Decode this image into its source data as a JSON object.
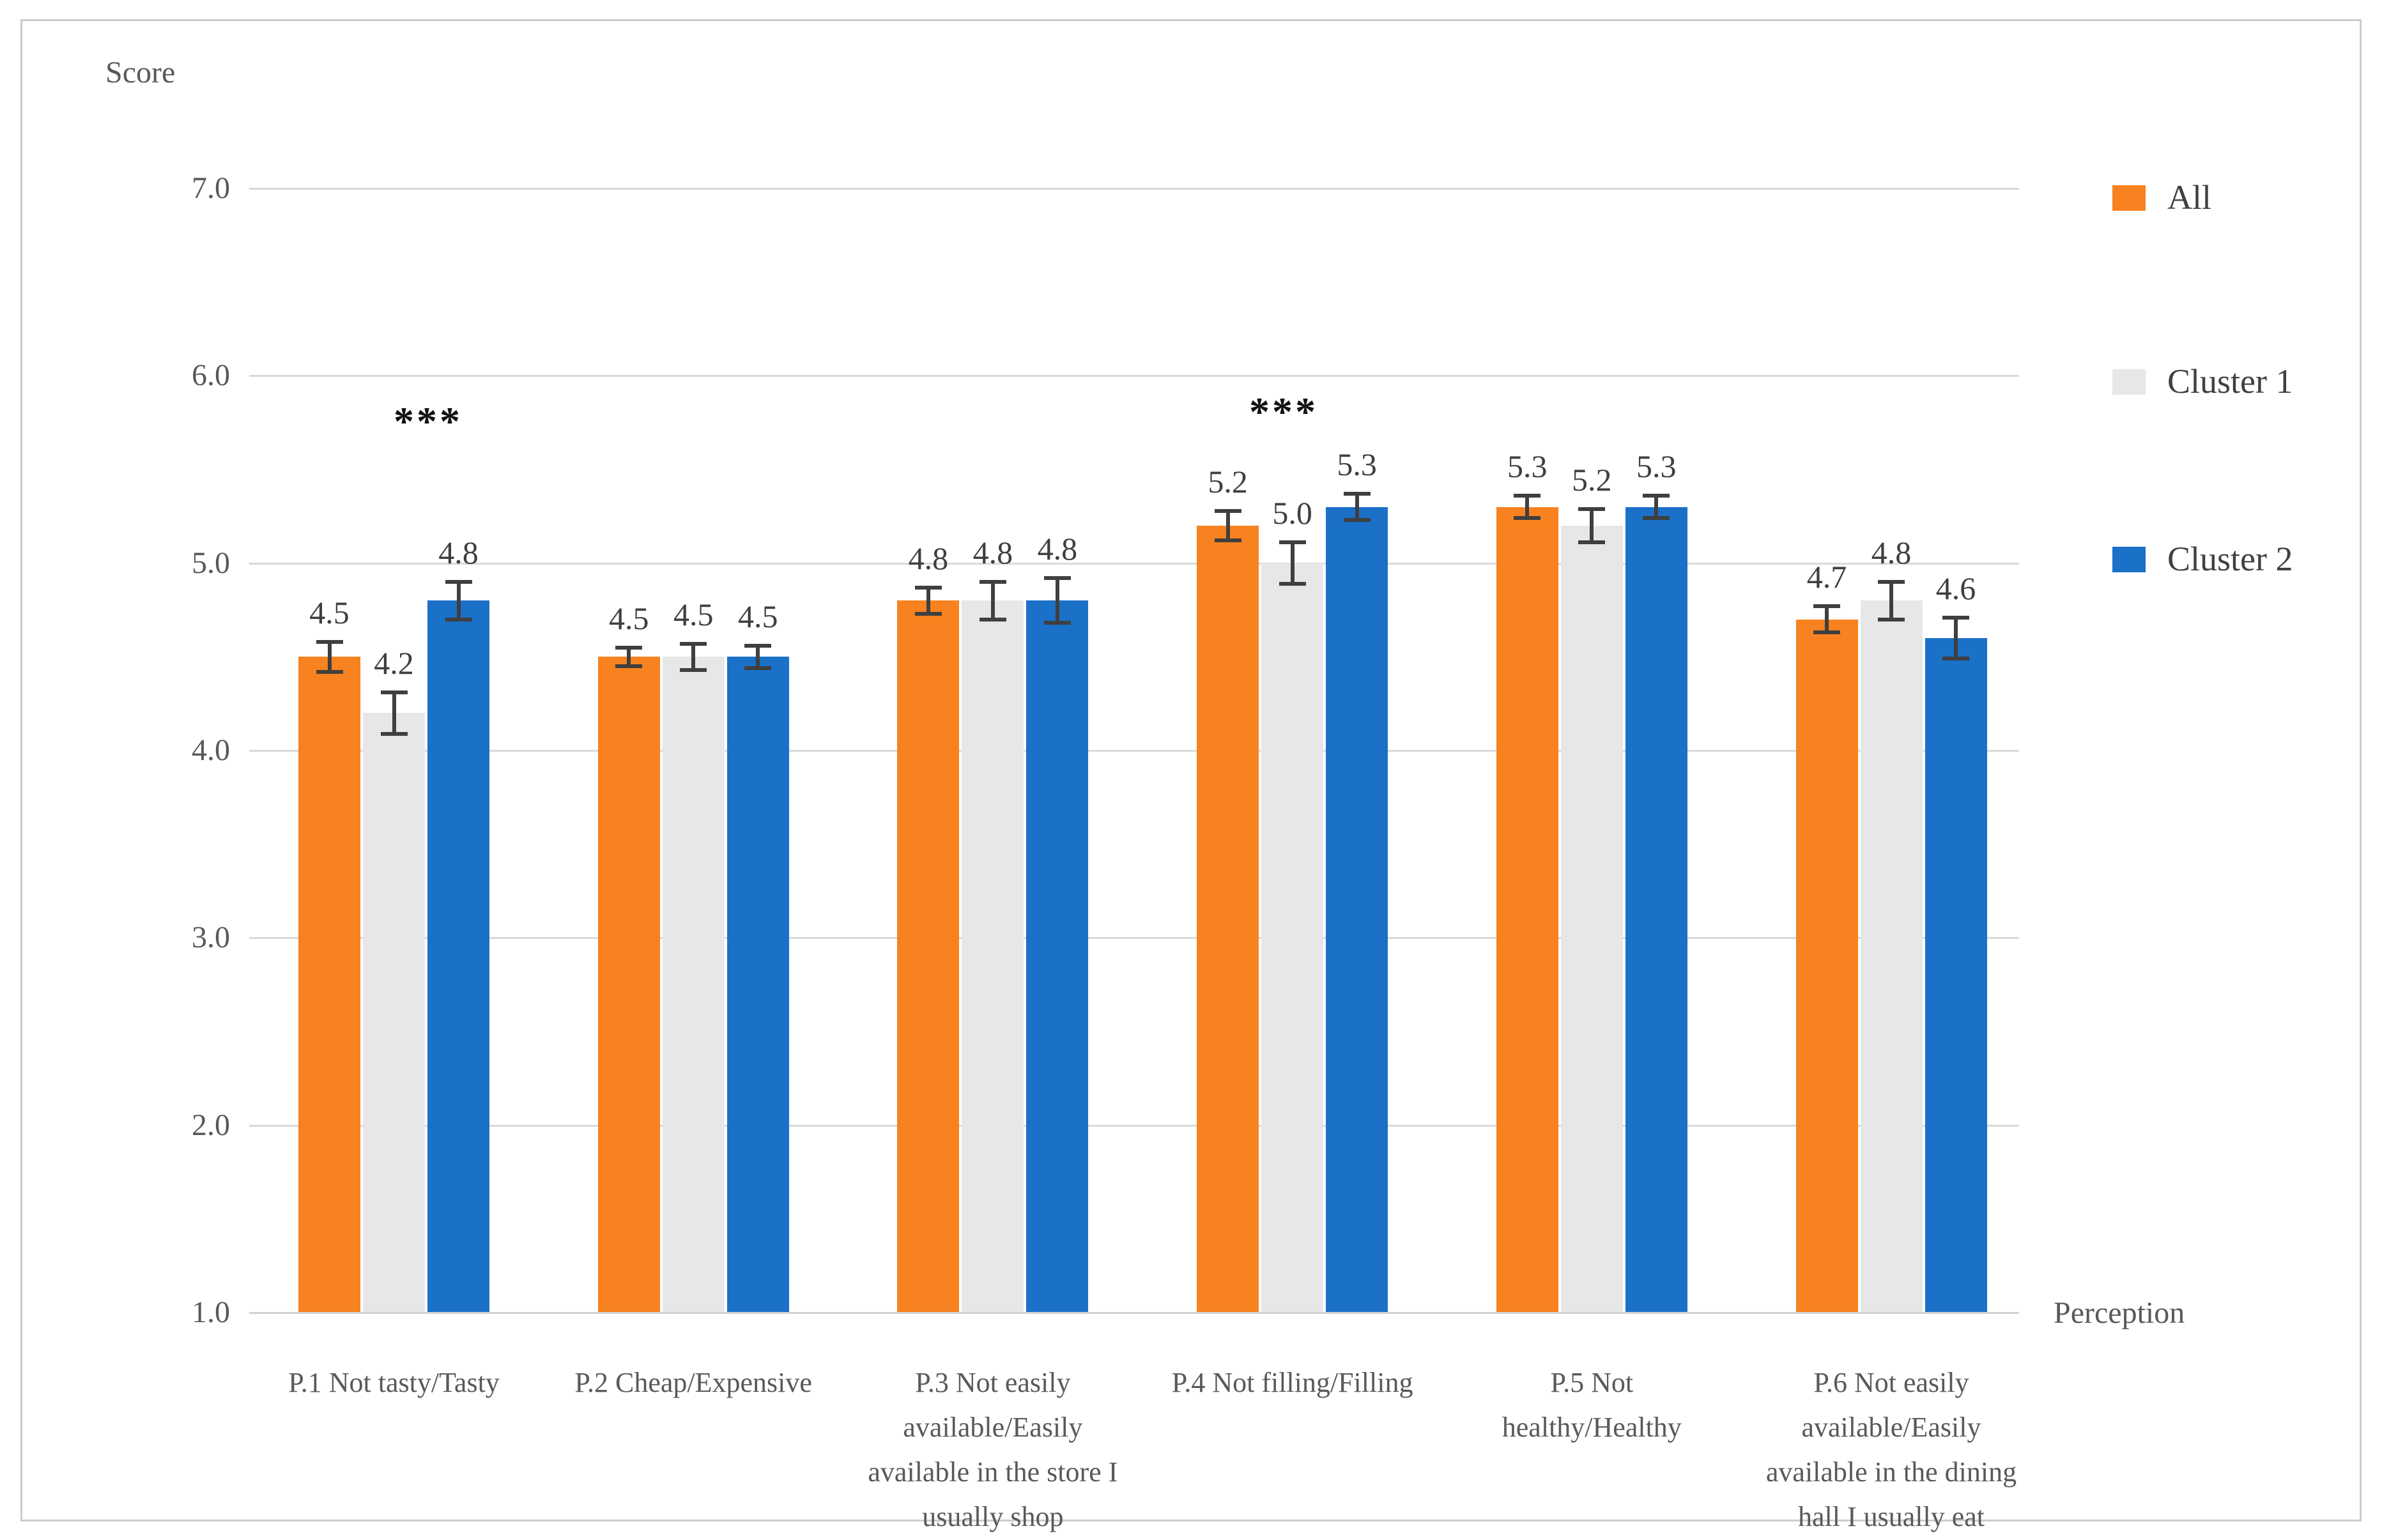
{
  "chart_data": {
    "type": "bar",
    "title": "",
    "ylabel": "Score",
    "xlabel": "Perception",
    "ylim": [
      1.0,
      7.0
    ],
    "yticks": [
      "7.0",
      "6.0",
      "5.0",
      "4.0",
      "3.0",
      "2.0",
      "1.0"
    ],
    "ytick_values": [
      7.0,
      6.0,
      5.0,
      4.0,
      3.0,
      2.0,
      1.0
    ],
    "grid": true,
    "legend_position": "right",
    "value_labels_shown": true,
    "error_bars_shown": true,
    "categories": [
      {
        "label": "P.1 Not tasty/Tasty",
        "lines": [
          "P.1 Not tasty/Tasty"
        ]
      },
      {
        "label": "P.2 Cheap/Expensive",
        "lines": [
          "P.2 Cheap/Expensive"
        ]
      },
      {
        "label": "P.3 Not easily available/Easily available in the store I usually shop",
        "lines": [
          "P.3 Not easily",
          "available/Easily",
          "available in the store I",
          "usually shop"
        ]
      },
      {
        "label": "P.4 Not filling/Filling",
        "lines": [
          "P.4 Not filling/Filling"
        ]
      },
      {
        "label": "P.5 Not healthy/Healthy",
        "lines": [
          "P.5 Not",
          "healthy/Healthy"
        ]
      },
      {
        "label": "P.6 Not easily available/Easily available in the dining hall I usually eat",
        "lines": [
          "P.6 Not easily",
          "available/Easily",
          "available in the dining",
          "hall I usually eat"
        ]
      }
    ],
    "series": [
      {
        "name": "All",
        "color": "#F8821F",
        "values": [
          4.5,
          4.5,
          4.8,
          5.2,
          5.3,
          4.7
        ],
        "errors": [
          0.09,
          0.06,
          0.08,
          0.09,
          0.07,
          0.08
        ]
      },
      {
        "name": "Cluster 1",
        "color": "#E8E7E7",
        "values": [
          4.2,
          4.5,
          4.8,
          5.0,
          5.2,
          4.8
        ],
        "errors": [
          0.12,
          0.08,
          0.11,
          0.12,
          0.1,
          0.11
        ]
      },
      {
        "name": "Cluster 2",
        "color": "#1B70C8",
        "values": [
          4.8,
          4.5,
          4.8,
          5.3,
          5.3,
          4.6
        ],
        "errors": [
          0.11,
          0.07,
          0.13,
          0.08,
          0.07,
          0.12
        ]
      }
    ],
    "annotations": [
      {
        "category_index": 0,
        "text": "***",
        "meaning": "significant difference"
      },
      {
        "category_index": 3,
        "text": "***",
        "meaning": "significant difference"
      }
    ]
  },
  "colors": {
    "all_series": "#F8821F",
    "cluster1_series": "#E8E7E7",
    "cluster2_series": "#1B70C8",
    "gridline": "#D9D9D9",
    "axis_text": "#595959",
    "data_label_text": "#3F3F3F",
    "error_bar": "#3F3F3F",
    "frame_border": "#CCCCCC"
  }
}
